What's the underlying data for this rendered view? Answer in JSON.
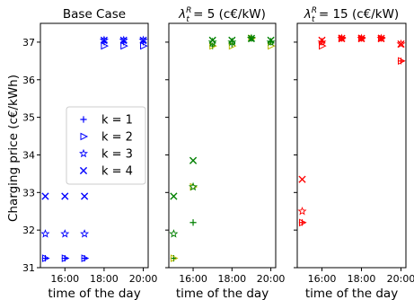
{
  "figure": {
    "ylabel": "Charging price (c€/kWh)",
    "xlabel": "time of the day"
  },
  "chart_data": [
    {
      "type": "scatter",
      "title": "Base Case",
      "xlabel": "time of the day",
      "ylabel": "Charging price (c€/kWh)",
      "xlim": [
        "14:45",
        "20:15"
      ],
      "ylim": [
        31,
        37.5
      ],
      "xticks": [
        "16:00",
        "18:00",
        "20:00"
      ],
      "yticks": [
        31,
        32,
        33,
        34,
        35,
        36,
        37
      ],
      "legend": {
        "placement": "center-left"
      },
      "series": [
        {
          "name": "k = 1",
          "marker": "plus",
          "color": "#0000ff",
          "points": [
            [
              "15:00",
              31.25
            ],
            [
              "16:00",
              31.25
            ],
            [
              "17:00",
              31.25
            ],
            [
              "18:00",
              37.0
            ],
            [
              "19:00",
              37.0
            ],
            [
              "20:00",
              37.0
            ]
          ]
        },
        {
          "name": "k = 2",
          "marker": "triangle-right",
          "color": "#0000ff",
          "points": [
            [
              "15:00",
              31.25
            ],
            [
              "16:00",
              31.25
            ],
            [
              "17:00",
              31.25
            ],
            [
              "18:00",
              36.9
            ],
            [
              "19:00",
              36.9
            ],
            [
              "20:00",
              36.9
            ]
          ]
        },
        {
          "name": "k = 3",
          "marker": "star",
          "color": "#0000ff",
          "points": [
            [
              "15:00",
              31.9
            ],
            [
              "16:00",
              31.9
            ],
            [
              "17:00",
              31.9
            ],
            [
              "18:00",
              37.05
            ],
            [
              "19:00",
              37.05
            ],
            [
              "20:00",
              37.05
            ]
          ]
        },
        {
          "name": "k = 4",
          "marker": "x",
          "color": "#0000ff",
          "points": [
            [
              "15:00",
              32.9
            ],
            [
              "16:00",
              32.9
            ],
            [
              "17:00",
              32.9
            ],
            [
              "18:00",
              37.05
            ],
            [
              "19:00",
              37.05
            ],
            [
              "20:00",
              37.05
            ]
          ]
        }
      ]
    },
    {
      "type": "scatter",
      "title": "λ_t^R = 5 (c€/kW)",
      "title_parts": {
        "symbol": "λ",
        "sub": "t",
        "sup": "R",
        "rest": " = 5 (c€/kW)"
      },
      "xlabel": "time of the day",
      "xlim": [
        "14:45",
        "20:15"
      ],
      "ylim": [
        31,
        37.5
      ],
      "xticks": [
        "16:00",
        "18:00",
        "20:00"
      ],
      "series": [
        {
          "name": "k = 1",
          "marker": "plus",
          "color": "#008000",
          "points": [
            [
              "15:00",
              31.25
            ],
            [
              "16:00",
              32.2
            ],
            [
              "17:00",
              36.9
            ],
            [
              "18:00",
              36.95
            ],
            [
              "19:00",
              37.1
            ],
            [
              "20:00",
              37.0
            ]
          ]
        },
        {
          "name": "k = 2",
          "marker": "triangle-right",
          "color": "#b8b800",
          "points": [
            [
              "15:00",
              31.25
            ],
            [
              "16:00",
              33.15
            ],
            [
              "17:00",
              36.9
            ],
            [
              "18:00",
              36.9
            ],
            [
              "19:00",
              37.1
            ],
            [
              "20:00",
              36.9
            ]
          ]
        },
        {
          "name": "k = 3",
          "marker": "star",
          "color": "#008000",
          "points": [
            [
              "15:00",
              31.9
            ],
            [
              "16:00",
              33.15
            ],
            [
              "17:00",
              37.0
            ],
            [
              "18:00",
              37.0
            ],
            [
              "19:00",
              37.1
            ],
            [
              "20:00",
              37.0
            ]
          ]
        },
        {
          "name": "k = 4",
          "marker": "x",
          "color": "#008000",
          "points": [
            [
              "15:00",
              32.9
            ],
            [
              "16:00",
              33.85
            ],
            [
              "17:00",
              37.05
            ],
            [
              "18:00",
              37.05
            ],
            [
              "19:00",
              37.1
            ],
            [
              "20:00",
              37.05
            ]
          ]
        }
      ]
    },
    {
      "type": "scatter",
      "title": "λ_t^R = 15 (c€/kW)",
      "title_parts": {
        "symbol": "λ",
        "sub": "t",
        "sup": "R",
        "rest": " = 15 (c€/kW)"
      },
      "xlabel": "time of the day",
      "xlim": [
        "14:45",
        "20:15"
      ],
      "ylim": [
        31,
        37.5
      ],
      "xticks": [
        "16:00",
        "18:00",
        "20:00"
      ],
      "series": [
        {
          "name": "k = 1",
          "marker": "plus",
          "color": "#ff0000",
          "points": [
            [
              "15:00",
              32.2
            ],
            [
              "16:00",
              37.0
            ],
            [
              "17:00",
              37.1
            ],
            [
              "18:00",
              37.1
            ],
            [
              "19:00",
              37.1
            ],
            [
              "20:00",
              36.5
            ]
          ]
        },
        {
          "name": "k = 2",
          "marker": "triangle-right",
          "color": "#ff0000",
          "points": [
            [
              "15:00",
              32.2
            ],
            [
              "16:00",
              36.9
            ],
            [
              "17:00",
              37.1
            ],
            [
              "18:00",
              37.1
            ],
            [
              "19:00",
              37.1
            ],
            [
              "20:00",
              36.5
            ]
          ]
        },
        {
          "name": "k = 3",
          "marker": "star",
          "color": "#ff0000",
          "points": [
            [
              "15:00",
              32.5
            ],
            [
              "16:00",
              37.0
            ],
            [
              "17:00",
              37.1
            ],
            [
              "18:00",
              37.1
            ],
            [
              "19:00",
              37.1
            ],
            [
              "20:00",
              36.95
            ]
          ]
        },
        {
          "name": "k = 4",
          "marker": "x",
          "color": "#ff0000",
          "points": [
            [
              "15:00",
              33.35
            ],
            [
              "16:00",
              37.05
            ],
            [
              "17:00",
              37.1
            ],
            [
              "18:00",
              37.1
            ],
            [
              "19:00",
              37.1
            ],
            [
              "20:00",
              36.95
            ]
          ]
        }
      ]
    }
  ]
}
